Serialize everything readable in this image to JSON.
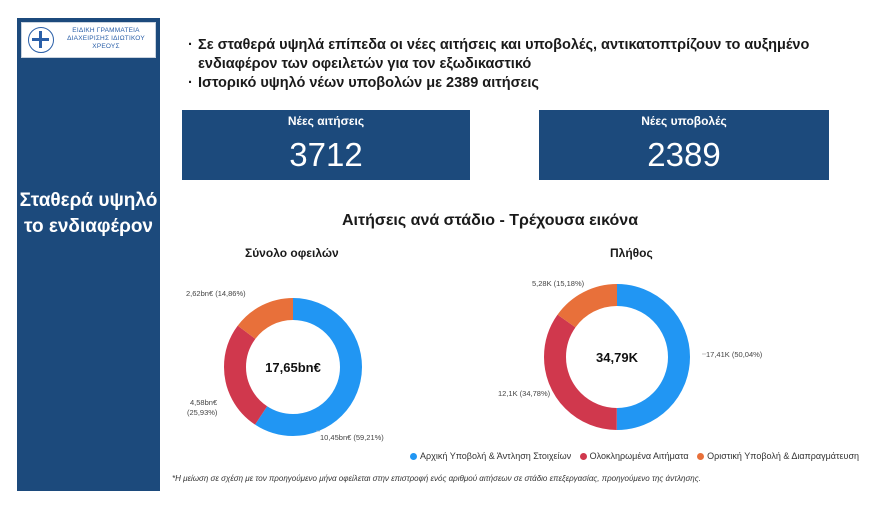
{
  "logo": {
    "text": "ΕΙΔΙΚΗ ΓΡΑΜΜΑΤΕΙΑ ΔΙΑΧΕΙΡΙΣΗΣ ΙΔΙΩΤΙΚΟΥ ΧΡΕΟΥΣ"
  },
  "sidebar": {
    "title": "Σταθερά υψηλό το ενδιαφέρον"
  },
  "bullets": [
    "Σε σταθερά υψηλά επίπεδα οι νέες αιτήσεις και υποβολές, αντικατοπτρίζουν το αυξημένο ενδιαφέρον των οφειλετών για τον εξωδικαστικό",
    "Ιστορικό υψηλό νέων υποβολών με 2389 αιτήσεις"
  ],
  "kpis": [
    {
      "label": "Νέες αιτήσεις",
      "value": "3712"
    },
    {
      "label": "Νέες υποβολές",
      "value": "2389"
    }
  ],
  "section_title": "Αιτήσεις ανά στάδιο - Τρέχουσα εικόνα",
  "footnote": "*Η μείωση σε σχέση με τον προηγούμενο μήνα οφείλεται στην επιστροφή ενός αριθμού αιτήσεων σε στάδιο επεξεργασίας, προηγούμενο της άντλησης.",
  "colors": {
    "navy": "#1c4a7c",
    "blue": "#2196f3",
    "red": "#d0384d",
    "orange": "#e8703a"
  },
  "chart_data": [
    {
      "type": "pie",
      "title": "Σύνολο οφειλών",
      "center_label": "17,65bn€",
      "categories": [
        "Αρχική Υποβολή & Άντληση Στοιχείων",
        "Ολοκληρωμένα Αιτήματα",
        "Οριστική Υποβολή & Διαπραγμάτευση"
      ],
      "values": [
        59.21,
        25.93,
        14.86
      ],
      "labels": [
        "10,45bn€ (59,21%)",
        "4,58bn€ (25,93%)",
        "2,62bn€ (14,86%)"
      ],
      "legend": "bottom"
    },
    {
      "type": "pie",
      "title": "Πλήθος",
      "center_label": "34,79K",
      "categories": [
        "Αρχική Υποβολή & Άντληση Στοιχείων",
        "Ολοκληρωμένα Αιτήματα",
        "Οριστική Υποβολή & Διαπραγμάτευση"
      ],
      "values": [
        50.04,
        34.78,
        15.18
      ],
      "labels": [
        "17,41K (50,04%)",
        "12,1K (34,78%)",
        "5,28K (15,18%)"
      ],
      "legend": "bottom"
    }
  ]
}
